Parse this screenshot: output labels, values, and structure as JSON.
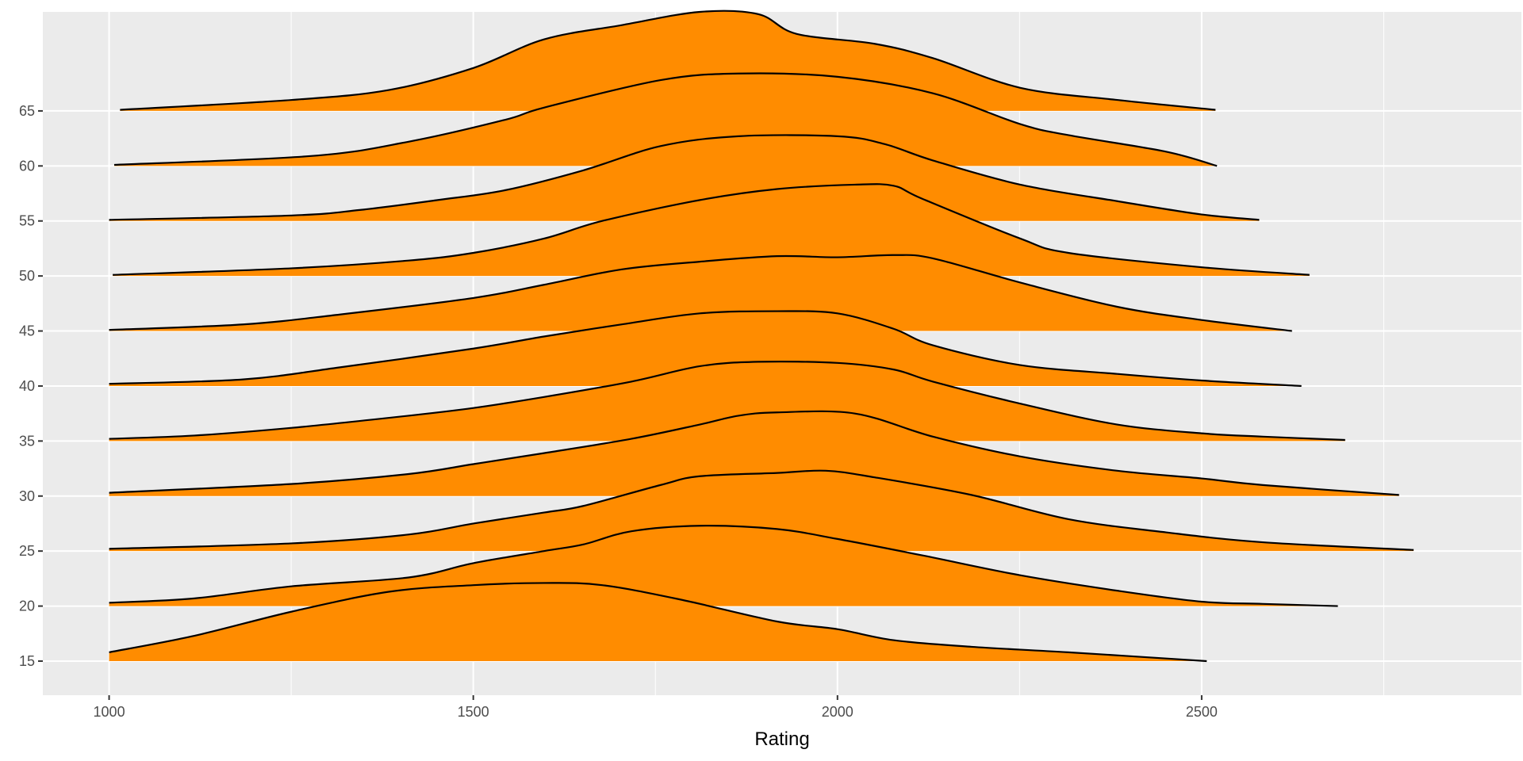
{
  "chart_data": {
    "type": "ridgeline",
    "title": "",
    "xlabel": "Rating",
    "ylabel": "",
    "xlim": [
      909,
      2939
    ],
    "ylim": [
      11.9,
      74
    ],
    "x_ticks": [
      1000,
      1500,
      2000,
      2500
    ],
    "x_minor_ticks": [
      1250,
      1750,
      2250,
      2750
    ],
    "y_ticks": [
      15,
      20,
      25,
      30,
      35,
      40,
      45,
      50,
      55,
      60,
      65
    ],
    "grid": true,
    "fill_color": "#FF8C00",
    "line_color": "#000000",
    "panel_color": "#EBEBEB",
    "series": [
      {
        "name": "15",
        "baseline": 15,
        "points": [
          [
            1000,
            0.8
          ],
          [
            1117,
            2.3
          ],
          [
            1251,
            4.5
          ],
          [
            1384,
            6.3
          ],
          [
            1500,
            6.9
          ],
          [
            1597,
            7.1
          ],
          [
            1677,
            6.9
          ],
          [
            1784,
            5.6
          ],
          [
            1917,
            3.6
          ],
          [
            2000,
            2.9
          ],
          [
            2077,
            1.9
          ],
          [
            2184,
            1.3
          ],
          [
            2317,
            0.8
          ],
          [
            2507,
            0
          ]
        ]
      },
      {
        "name": "20",
        "baseline": 20,
        "points": [
          [
            1000,
            0.3
          ],
          [
            1117,
            0.7
          ],
          [
            1251,
            1.8
          ],
          [
            1411,
            2.6
          ],
          [
            1500,
            3.9
          ],
          [
            1597,
            5.0
          ],
          [
            1651,
            5.6
          ],
          [
            1717,
            6.8
          ],
          [
            1811,
            7.3
          ],
          [
            1917,
            7.0
          ],
          [
            2000,
            6.1
          ],
          [
            2117,
            4.6
          ],
          [
            2251,
            2.8
          ],
          [
            2384,
            1.4
          ],
          [
            2500,
            0.4
          ],
          [
            2584,
            0.2
          ],
          [
            2687,
            0
          ]
        ]
      },
      {
        "name": "25",
        "baseline": 25,
        "points": [
          [
            1000,
            0.2
          ],
          [
            1251,
            0.7
          ],
          [
            1411,
            1.5
          ],
          [
            1500,
            2.5
          ],
          [
            1597,
            3.5
          ],
          [
            1651,
            4.1
          ],
          [
            1757,
            6.0
          ],
          [
            1811,
            6.8
          ],
          [
            1917,
            7.1
          ],
          [
            1984,
            7.3
          ],
          [
            2051,
            6.7
          ],
          [
            2184,
            5.1
          ],
          [
            2317,
            2.9
          ],
          [
            2451,
            1.7
          ],
          [
            2584,
            0.8
          ],
          [
            2791,
            0.1
          ]
        ]
      },
      {
        "name": "30",
        "baseline": 30,
        "points": [
          [
            1000,
            0.3
          ],
          [
            1251,
            1.1
          ],
          [
            1411,
            2.0
          ],
          [
            1500,
            2.9
          ],
          [
            1597,
            3.9
          ],
          [
            1717,
            5.2
          ],
          [
            1811,
            6.5
          ],
          [
            1864,
            7.3
          ],
          [
            1917,
            7.6
          ],
          [
            2024,
            7.5
          ],
          [
            2131,
            5.4
          ],
          [
            2251,
            3.6
          ],
          [
            2384,
            2.3
          ],
          [
            2500,
            1.6
          ],
          [
            2584,
            1.0
          ],
          [
            2771,
            0.1
          ]
        ]
      },
      {
        "name": "35",
        "baseline": 35,
        "points": [
          [
            1000,
            0.2
          ],
          [
            1117,
            0.5
          ],
          [
            1251,
            1.2
          ],
          [
            1411,
            2.3
          ],
          [
            1500,
            3.0
          ],
          [
            1597,
            4.0
          ],
          [
            1717,
            5.4
          ],
          [
            1811,
            6.8
          ],
          [
            1891,
            7.2
          ],
          [
            2000,
            7.1
          ],
          [
            2077,
            6.5
          ],
          [
            2131,
            5.4
          ],
          [
            2251,
            3.4
          ],
          [
            2384,
            1.5
          ],
          [
            2500,
            0.7
          ],
          [
            2584,
            0.4
          ],
          [
            2697,
            0.1
          ]
        ]
      },
      {
        "name": "40",
        "baseline": 40,
        "points": [
          [
            1000,
            0.2
          ],
          [
            1184,
            0.6
          ],
          [
            1317,
            1.7
          ],
          [
            1500,
            3.4
          ],
          [
            1597,
            4.5
          ],
          [
            1704,
            5.6
          ],
          [
            1811,
            6.6
          ],
          [
            1917,
            6.8
          ],
          [
            2000,
            6.6
          ],
          [
            2077,
            5.2
          ],
          [
            2131,
            3.7
          ],
          [
            2251,
            1.9
          ],
          [
            2384,
            1.1
          ],
          [
            2500,
            0.5
          ],
          [
            2637,
            0
          ]
        ]
      },
      {
        "name": "45",
        "baseline": 45,
        "points": [
          [
            1000,
            0.1
          ],
          [
            1184,
            0.6
          ],
          [
            1317,
            1.5
          ],
          [
            1500,
            3.0
          ],
          [
            1597,
            4.2
          ],
          [
            1704,
            5.6
          ],
          [
            1811,
            6.3
          ],
          [
            1917,
            6.8
          ],
          [
            2000,
            6.7
          ],
          [
            2077,
            6.9
          ],
          [
            2131,
            6.6
          ],
          [
            2251,
            4.4
          ],
          [
            2384,
            2.2
          ],
          [
            2500,
            1.0
          ],
          [
            2624,
            0
          ]
        ]
      },
      {
        "name": "50",
        "baseline": 50,
        "points": [
          [
            1005,
            0.1
          ],
          [
            1251,
            0.7
          ],
          [
            1411,
            1.4
          ],
          [
            1500,
            2.1
          ],
          [
            1597,
            3.4
          ],
          [
            1677,
            5.0
          ],
          [
            1811,
            6.9
          ],
          [
            1917,
            7.9
          ],
          [
            2024,
            8.3
          ],
          [
            2077,
            8.2
          ],
          [
            2117,
            7.0
          ],
          [
            2251,
            3.4
          ],
          [
            2317,
            2.1
          ],
          [
            2499,
            0.8
          ],
          [
            2648,
            0.1
          ]
        ]
      },
      {
        "name": "55",
        "baseline": 55,
        "points": [
          [
            1000,
            0.1
          ],
          [
            1251,
            0.5
          ],
          [
            1344,
            1.0
          ],
          [
            1451,
            1.9
          ],
          [
            1544,
            2.8
          ],
          [
            1651,
            4.6
          ],
          [
            1757,
            6.8
          ],
          [
            1864,
            7.7
          ],
          [
            2000,
            7.7
          ],
          [
            2064,
            7.0
          ],
          [
            2131,
            5.5
          ],
          [
            2251,
            3.3
          ],
          [
            2384,
            1.8
          ],
          [
            2499,
            0.6
          ],
          [
            2579,
            0.1
          ]
        ]
      },
      {
        "name": "60",
        "baseline": 60,
        "points": [
          [
            1007,
            0.1
          ],
          [
            1277,
            0.9
          ],
          [
            1411,
            2.2
          ],
          [
            1544,
            4.2
          ],
          [
            1597,
            5.3
          ],
          [
            1757,
            7.8
          ],
          [
            1864,
            8.4
          ],
          [
            2000,
            8.1
          ],
          [
            2131,
            6.6
          ],
          [
            2251,
            3.8
          ],
          [
            2317,
            2.8
          ],
          [
            2451,
            1.3
          ],
          [
            2521,
            0
          ]
        ]
      },
      {
        "name": "65",
        "baseline": 65,
        "points": [
          [
            1015,
            0.1
          ],
          [
            1251,
            1.0
          ],
          [
            1384,
            1.9
          ],
          [
            1500,
            3.9
          ],
          [
            1597,
            6.5
          ],
          [
            1704,
            7.8
          ],
          [
            1811,
            9.0
          ],
          [
            1891,
            8.8
          ],
          [
            1944,
            7.0
          ],
          [
            2051,
            6.1
          ],
          [
            2131,
            4.8
          ],
          [
            2251,
            2.1
          ],
          [
            2384,
            1.0
          ],
          [
            2519,
            0.1
          ]
        ]
      }
    ]
  }
}
